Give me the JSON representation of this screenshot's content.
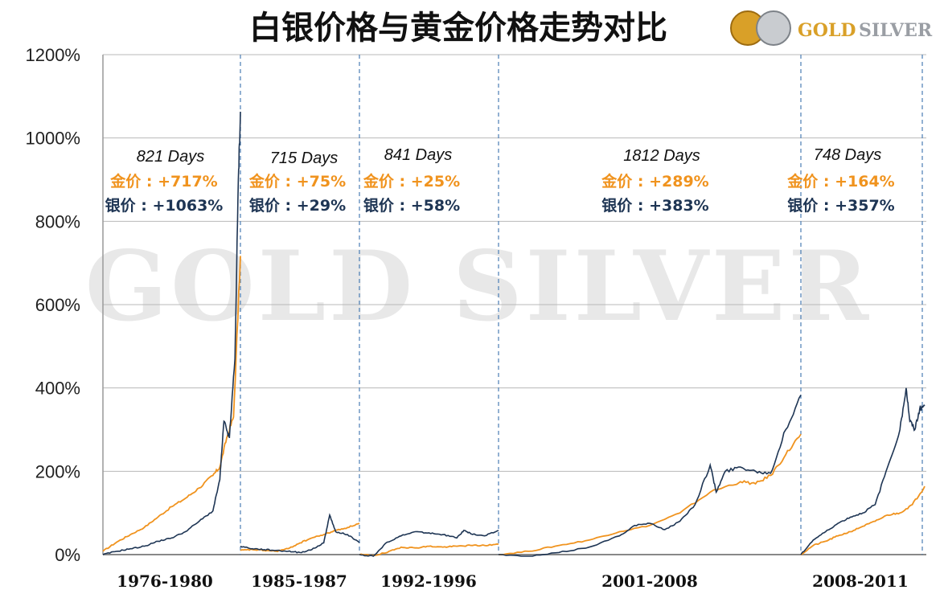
{
  "title": "白银价格与黄金价格走势对比",
  "logo": {
    "gold_word": "GOLD",
    "silver_word": "SILVER"
  },
  "watermark": "GOLD SILVER",
  "colors": {
    "gold": "#f0931e",
    "silver": "#1e3554",
    "grid": "#b8b8b8",
    "divider": "#4a7db5"
  },
  "chart_data": {
    "type": "line",
    "title": "白银价格与黄金价格走势对比",
    "ylabel": "",
    "ylim": [
      0,
      1200
    ],
    "yticks": [
      "0%",
      "200%",
      "400%",
      "600%",
      "800%",
      "1000%",
      "1200%"
    ],
    "grid": true,
    "legend": "none",
    "series_names": [
      "金价",
      "银价"
    ],
    "periods": [
      {
        "label": "1976-1980",
        "days": "821 Days",
        "gold_text": "金价 : +717%",
        "silver_text": "银价 : +1063%",
        "gold": [
          [
            0,
            8
          ],
          [
            0.1,
            30
          ],
          [
            0.2,
            48
          ],
          [
            0.3,
            65
          ],
          [
            0.4,
            90
          ],
          [
            0.5,
            115
          ],
          [
            0.6,
            135
          ],
          [
            0.7,
            160
          ],
          [
            0.8,
            190
          ],
          [
            0.85,
            210
          ],
          [
            0.9,
            280
          ],
          [
            0.95,
            330
          ],
          [
            1,
            717
          ]
        ],
        "silver": [
          [
            0,
            0
          ],
          [
            0.1,
            8
          ],
          [
            0.2,
            14
          ],
          [
            0.3,
            20
          ],
          [
            0.4,
            32
          ],
          [
            0.5,
            40
          ],
          [
            0.6,
            55
          ],
          [
            0.7,
            80
          ],
          [
            0.8,
            105
          ],
          [
            0.85,
            180
          ],
          [
            0.88,
            320
          ],
          [
            0.92,
            280
          ],
          [
            0.96,
            470
          ],
          [
            0.985,
            900
          ],
          [
            1,
            1063
          ]
        ]
      },
      {
        "label": "1985-1987",
        "days": "715 Days",
        "gold_text": "金价 : +75%",
        "silver_text": "银价 : +29%",
        "gold": [
          [
            0,
            10
          ],
          [
            0.1,
            12
          ],
          [
            0.2,
            10
          ],
          [
            0.3,
            8
          ],
          [
            0.4,
            14
          ],
          [
            0.5,
            28
          ],
          [
            0.6,
            40
          ],
          [
            0.7,
            48
          ],
          [
            0.8,
            58
          ],
          [
            0.9,
            65
          ],
          [
            1,
            75
          ]
        ],
        "silver": [
          [
            0,
            20
          ],
          [
            0.1,
            14
          ],
          [
            0.2,
            12
          ],
          [
            0.3,
            10
          ],
          [
            0.4,
            8
          ],
          [
            0.5,
            5
          ],
          [
            0.6,
            12
          ],
          [
            0.7,
            28
          ],
          [
            0.75,
            95
          ],
          [
            0.8,
            55
          ],
          [
            0.9,
            48
          ],
          [
            1,
            29
          ]
        ]
      },
      {
        "label": "1992-1996",
        "days": "841 Days",
        "gold_text": "金价 : +25%",
        "silver_text": "银价 : +58%",
        "gold": [
          [
            0,
            0
          ],
          [
            0.1,
            -2
          ],
          [
            0.2,
            5
          ],
          [
            0.3,
            18
          ],
          [
            0.4,
            16
          ],
          [
            0.5,
            20
          ],
          [
            0.6,
            18
          ],
          [
            0.7,
            20
          ],
          [
            0.8,
            22
          ],
          [
            0.9,
            22
          ],
          [
            1,
            25
          ]
        ],
        "silver": [
          [
            0,
            0
          ],
          [
            0.1,
            -4
          ],
          [
            0.2,
            30
          ],
          [
            0.3,
            45
          ],
          [
            0.4,
            55
          ],
          [
            0.5,
            52
          ],
          [
            0.6,
            48
          ],
          [
            0.7,
            40
          ],
          [
            0.75,
            58
          ],
          [
            0.8,
            50
          ],
          [
            0.9,
            45
          ],
          [
            1,
            58
          ]
        ]
      },
      {
        "label": "2001-2008",
        "days": "1812 Days",
        "gold_text": "金价 : +289%",
        "silver_text": "银价 : +383%",
        "gold": [
          [
            0,
            0
          ],
          [
            0.1,
            8
          ],
          [
            0.2,
            22
          ],
          [
            0.3,
            35
          ],
          [
            0.4,
            55
          ],
          [
            0.5,
            70
          ],
          [
            0.6,
            100
          ],
          [
            0.7,
            150
          ],
          [
            0.8,
            175
          ],
          [
            0.85,
            170
          ],
          [
            0.9,
            190
          ],
          [
            0.95,
            240
          ],
          [
            1,
            289
          ]
        ],
        "silver": [
          [
            0,
            0
          ],
          [
            0.1,
            -5
          ],
          [
            0.2,
            5
          ],
          [
            0.3,
            18
          ],
          [
            0.4,
            45
          ],
          [
            0.45,
            70
          ],
          [
            0.5,
            75
          ],
          [
            0.55,
            60
          ],
          [
            0.6,
            80
          ],
          [
            0.65,
            120
          ],
          [
            0.7,
            215
          ],
          [
            0.72,
            150
          ],
          [
            0.75,
            200
          ],
          [
            0.8,
            210
          ],
          [
            0.85,
            200
          ],
          [
            0.9,
            195
          ],
          [
            0.95,
            300
          ],
          [
            1,
            383
          ]
        ]
      },
      {
        "label": "2008-2011",
        "days": "748 Days",
        "gold_text": "金价 : +164%",
        "silver_text": "银价 : +357%",
        "gold": [
          [
            0,
            0
          ],
          [
            0.1,
            22
          ],
          [
            0.2,
            32
          ],
          [
            0.3,
            45
          ],
          [
            0.4,
            55
          ],
          [
            0.5,
            68
          ],
          [
            0.6,
            80
          ],
          [
            0.7,
            95
          ],
          [
            0.8,
            100
          ],
          [
            0.9,
            120
          ],
          [
            1,
            164
          ]
        ],
        "silver": [
          [
            0,
            0
          ],
          [
            0.1,
            35
          ],
          [
            0.2,
            55
          ],
          [
            0.3,
            75
          ],
          [
            0.4,
            90
          ],
          [
            0.5,
            100
          ],
          [
            0.6,
            120
          ],
          [
            0.7,
            210
          ],
          [
            0.8,
            300
          ],
          [
            0.85,
            400
          ],
          [
            0.88,
            320
          ],
          [
            0.92,
            300
          ],
          [
            0.96,
            350
          ],
          [
            1,
            357
          ]
        ]
      }
    ]
  }
}
